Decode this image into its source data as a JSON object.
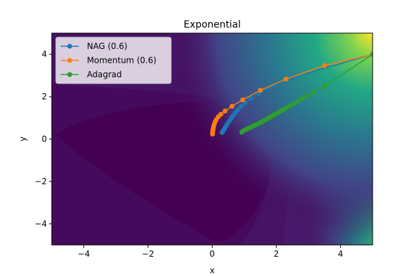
{
  "chart_data": {
    "type": "line",
    "title": "Exponential",
    "xlabel": "x",
    "ylabel": "y",
    "xlim": [
      -5,
      5
    ],
    "ylim": [
      -5,
      5
    ],
    "x_ticks": [
      -4,
      -2,
      0,
      2,
      4
    ],
    "y_ticks": [
      -4,
      -2,
      0,
      2,
      4
    ],
    "x_tick_labels": [
      "−4",
      "−2",
      "0",
      "2",
      "4"
    ],
    "y_tick_labels": [
      "−4",
      "−2",
      "0",
      "2",
      "4"
    ],
    "grid": false,
    "legend_position": "top-left",
    "background": "contour-filled (viridis)",
    "series": [
      {
        "name": "NAG (0.6)",
        "color": "#1f77b4",
        "marker": "circle",
        "points": [
          [
            5.0,
            4.0
          ],
          [
            2.5,
            2.9
          ],
          [
            1.85,
            2.48
          ],
          [
            1.45,
            2.15
          ],
          [
            1.2,
            1.92
          ],
          [
            1.02,
            1.72
          ],
          [
            0.9,
            1.55
          ],
          [
            0.8,
            1.38
          ],
          [
            0.72,
            1.24
          ],
          [
            0.65,
            1.1
          ],
          [
            0.6,
            0.98
          ],
          [
            0.55,
            0.87
          ],
          [
            0.5,
            0.77
          ],
          [
            0.46,
            0.68
          ],
          [
            0.43,
            0.6
          ],
          [
            0.4,
            0.52
          ],
          [
            0.37,
            0.46
          ],
          [
            0.35,
            0.4
          ],
          [
            0.33,
            0.35
          ],
          [
            0.31,
            0.31
          ]
        ]
      },
      {
        "name": "Momentum (0.6)",
        "color": "#ff7f0e",
        "marker": "circle",
        "points": [
          [
            5.0,
            4.0
          ],
          [
            3.5,
            3.47
          ],
          [
            2.3,
            2.83
          ],
          [
            1.5,
            2.3
          ],
          [
            0.95,
            1.85
          ],
          [
            0.62,
            1.55
          ],
          [
            0.4,
            1.32
          ],
          [
            0.27,
            1.17
          ],
          [
            0.19,
            1.05
          ],
          [
            0.13,
            0.92
          ],
          [
            0.09,
            0.8
          ],
          [
            0.06,
            0.68
          ],
          [
            0.04,
            0.57
          ],
          [
            0.03,
            0.47
          ],
          [
            0.02,
            0.38
          ],
          [
            0.015,
            0.3
          ],
          [
            0.01,
            0.23
          ]
        ]
      },
      {
        "name": "Adagrad",
        "color": "#2ca02c",
        "marker": "circle",
        "points": [
          [
            5.0,
            4.0
          ],
          [
            3.5,
            2.5
          ],
          [
            3.15,
            2.2
          ],
          [
            2.95,
            2.03
          ],
          [
            2.8,
            1.9
          ],
          [
            2.66,
            1.78
          ],
          [
            2.54,
            1.67
          ],
          [
            2.43,
            1.58
          ],
          [
            2.33,
            1.49
          ],
          [
            2.24,
            1.41
          ],
          [
            2.15,
            1.33
          ],
          [
            2.07,
            1.26
          ],
          [
            1.99,
            1.19
          ],
          [
            1.91,
            1.12
          ],
          [
            1.84,
            1.06
          ],
          [
            1.77,
            1.0
          ],
          [
            1.7,
            0.94
          ],
          [
            1.63,
            0.88
          ],
          [
            1.56,
            0.82
          ],
          [
            1.49,
            0.77
          ],
          [
            1.42,
            0.71
          ],
          [
            1.35,
            0.66
          ],
          [
            1.28,
            0.61
          ],
          [
            1.21,
            0.56
          ],
          [
            1.14,
            0.51
          ],
          [
            1.07,
            0.46
          ],
          [
            1.0,
            0.41
          ],
          [
            0.95,
            0.37
          ],
          [
            0.92,
            0.32
          ]
        ]
      }
    ]
  }
}
